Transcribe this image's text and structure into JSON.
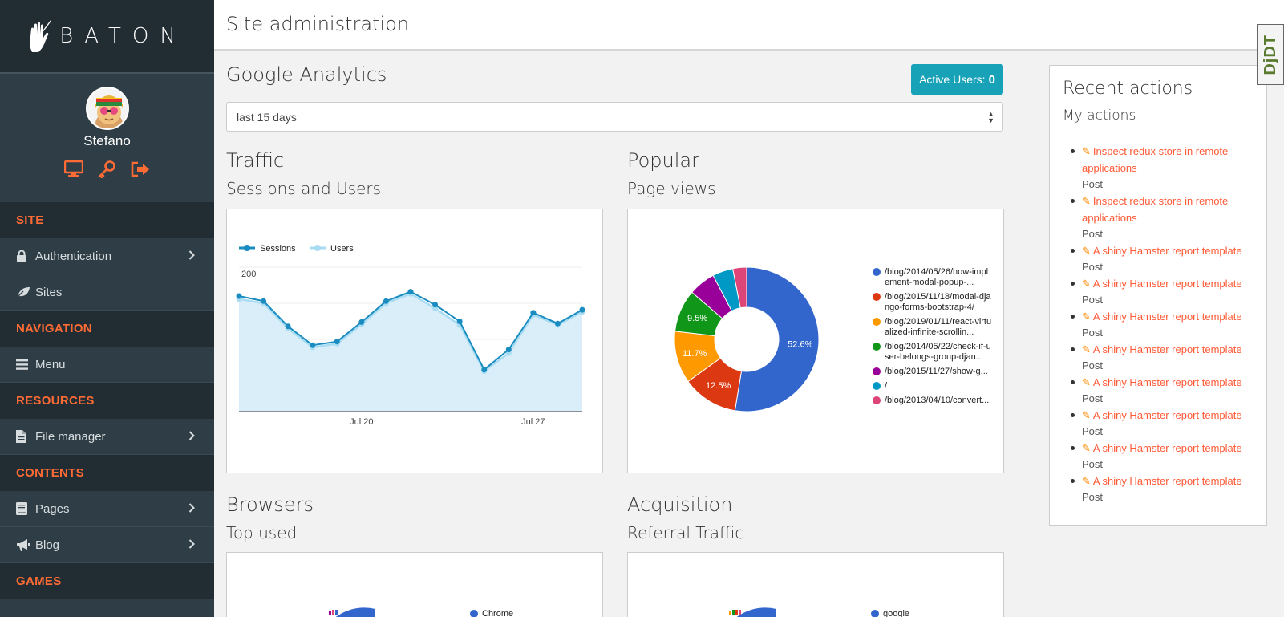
{
  "brand": {
    "name": "BATON"
  },
  "user": {
    "name": "Stefano"
  },
  "sidebar": {
    "sections": [
      {
        "title": "SITE",
        "items": [
          {
            "label": "Authentication",
            "icon": "lock-icon",
            "has_children": true
          },
          {
            "label": "Sites",
            "icon": "leaf-icon",
            "has_children": false
          }
        ]
      },
      {
        "title": "NAVIGATION",
        "items": [
          {
            "label": "Menu",
            "icon": "bars-icon",
            "has_children": false
          }
        ]
      },
      {
        "title": "RESOURCES",
        "items": [
          {
            "label": "File manager",
            "icon": "file-icon",
            "has_children": true
          }
        ]
      },
      {
        "title": "CONTENTS",
        "items": [
          {
            "label": "Pages",
            "icon": "book-icon",
            "has_children": true
          },
          {
            "label": "Blog",
            "icon": "bullhorn-icon",
            "has_children": true
          }
        ]
      },
      {
        "title": "GAMES",
        "items": []
      }
    ]
  },
  "header": {
    "title": "Site administration",
    "debug_toolbar": "DjDT"
  },
  "analytics": {
    "title": "Google Analytics",
    "active_users_label": "Active Users:",
    "active_users_value": "0",
    "range_selected": "last 15 days"
  },
  "traffic": {
    "title": "Traffic",
    "subtitle": "Sessions and Users"
  },
  "popular": {
    "title": "Popular",
    "subtitle": "Page views"
  },
  "browsers": {
    "title": "Browsers",
    "subtitle": "Top used",
    "legend_first": "Chrome"
  },
  "acquisition": {
    "title": "Acquisition",
    "subtitle": "Referral Traffic",
    "legend_first": "google"
  },
  "recent": {
    "title": "Recent actions",
    "subtitle": "My actions",
    "items": [
      {
        "label": "Inspect redux store in remote applications",
        "type": "Post"
      },
      {
        "label": "Inspect redux store in remote applications",
        "type": "Post"
      },
      {
        "label": "A shiny Hamster report template",
        "type": "Post"
      },
      {
        "label": "A shiny Hamster report template",
        "type": "Post"
      },
      {
        "label": "A shiny Hamster report template",
        "type": "Post"
      },
      {
        "label": "A shiny Hamster report template",
        "type": "Post"
      },
      {
        "label": "A shiny Hamster report template",
        "type": "Post"
      },
      {
        "label": "A shiny Hamster report template",
        "type": "Post"
      },
      {
        "label": "A shiny Hamster report template",
        "type": "Post"
      },
      {
        "label": "A shiny Hamster report template",
        "type": "Post"
      }
    ]
  },
  "colors": {
    "accent": "#ff6b35",
    "sidebar": "#2f3e46",
    "info": "#17a2b8"
  },
  "chart_data": [
    {
      "type": "area",
      "x_ticks": [
        "Jul 20",
        "Jul 27"
      ],
      "y_ticks": [
        "200",
        "100"
      ],
      "ylim": [
        0,
        200
      ],
      "series": [
        {
          "name": "Sessions",
          "color": "#1a8cc0",
          "values": [
            160,
            153,
            118,
            92,
            97,
            124,
            153,
            166,
            148,
            125,
            58,
            86,
            137,
            122,
            141
          ]
        },
        {
          "name": "Users",
          "color": "#a8dcf3",
          "values": [
            156,
            150,
            115,
            89,
            94,
            121,
            150,
            163,
            143,
            120,
            56,
            81,
            134,
            120,
            138
          ]
        }
      ]
    },
    {
      "type": "pie",
      "donut": true,
      "slices": [
        {
          "label": "/blog/2014/05/26/how-implement-modal-popup-...",
          "value": 52.6,
          "color": "#3366cc",
          "display": "52.6%"
        },
        {
          "label": "/blog/2015/11/18/modal-django-forms-bootstrap-4/",
          "value": 12.5,
          "color": "#dc3912",
          "display": "12.5%"
        },
        {
          "label": "/blog/2019/01/11/react-virtualized-infinite-scrollin...",
          "value": 11.7,
          "color": "#ff9900",
          "display": "11.7%"
        },
        {
          "label": "/blog/2014/05/22/check-if-user-belongs-group-djan...",
          "value": 9.5,
          "color": "#109618",
          "display": "9.5%"
        },
        {
          "label": "/blog/2015/11/27/show-g...",
          "value": 6.0,
          "color": "#990099",
          "display": ""
        },
        {
          "label": "/",
          "value": 4.6,
          "color": "#0099c6",
          "display": ""
        },
        {
          "label": "/blog/2013/04/10/convert...",
          "value": 3.1,
          "color": "#dd4477",
          "display": ""
        }
      ]
    }
  ]
}
